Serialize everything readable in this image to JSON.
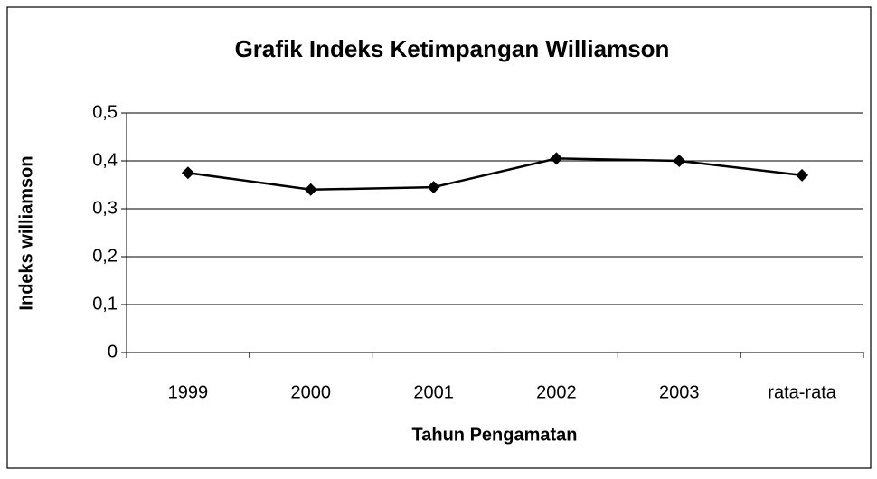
{
  "chart_data": {
    "type": "line",
    "title": "Grafik Indeks Ketimpangan Williamson",
    "xlabel": "Tahun Pengamatan",
    "ylabel": "Indeks williamson",
    "categories": [
      "1999",
      "2000",
      "2001",
      "2002",
      "2003",
      "rata-rata"
    ],
    "series": [
      {
        "color": "#000000",
        "values": [
          0.375,
          0.34,
          0.345,
          0.405,
          0.4,
          0.37
        ]
      }
    ],
    "ylim": [
      0,
      0.5
    ],
    "yticks": [
      0,
      {
        "value": 0.1,
        "label": "0,1"
      },
      {
        "value": 0.2,
        "label": "0,2"
      },
      {
        "value": 0.3,
        "label": "0,3"
      },
      {
        "value": 0.4,
        "label": "0,4"
      },
      {
        "value": 0.5,
        "label": "0,5"
      }
    ],
    "grid": true
  }
}
